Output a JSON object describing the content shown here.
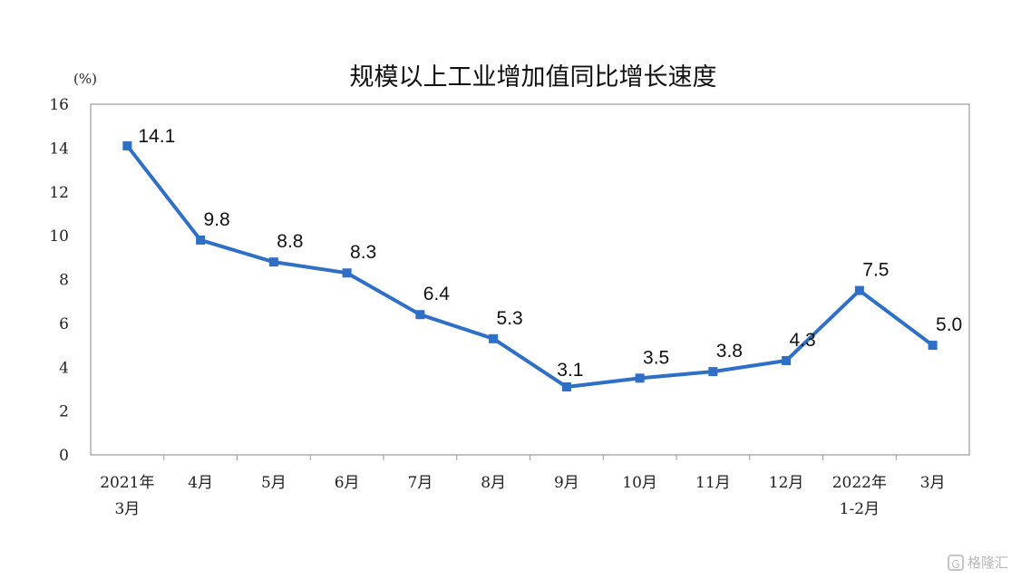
{
  "chart_data": {
    "type": "line",
    "title": "规模以上工业增加值同比增长速度",
    "unit": "(%)",
    "ylim": [
      0,
      16
    ],
    "yticks": [
      "0",
      "2",
      "4",
      "6",
      "8",
      "10",
      "12",
      "14",
      "16"
    ],
    "categories": [
      [
        "2021年",
        "3月"
      ],
      [
        "4月"
      ],
      [
        "5月"
      ],
      [
        "6月"
      ],
      [
        "7月"
      ],
      [
        "8月"
      ],
      [
        "9月"
      ],
      [
        "10月"
      ],
      [
        "11月"
      ],
      [
        "12月"
      ],
      [
        "2022年",
        "1-2月"
      ],
      [
        "3月"
      ]
    ],
    "series": [
      {
        "values": [
          14.1,
          9.8,
          8.8,
          8.3,
          6.4,
          5.3,
          3.1,
          3.5,
          3.8,
          4.3,
          7.5,
          5.0
        ],
        "labels": [
          "14.1",
          "9.8",
          "8.8",
          "8.3",
          "6.4",
          "5.3",
          "3.1",
          "3.5",
          "3.8",
          "4.3",
          "7.5",
          "5.0"
        ]
      }
    ],
    "grid": false,
    "line_color": "#2f6fc6",
    "axis_color": "#9a9a9a"
  },
  "watermark": {
    "icon": "gelonghui-logo-icon",
    "text": "格隆汇"
  }
}
